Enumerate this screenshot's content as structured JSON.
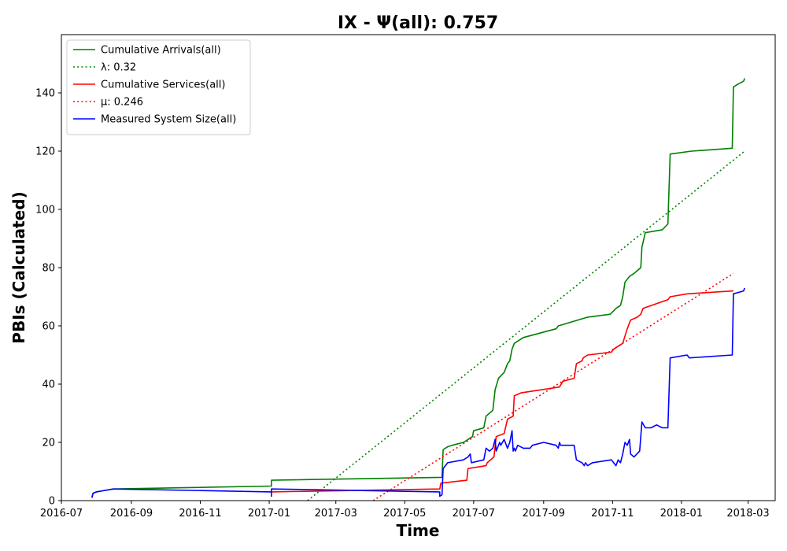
{
  "chart_data": {
    "type": "line",
    "title": "IX -  Ψ(all): 0.757",
    "xlabel": "Time",
    "ylabel": "PBIs (Calculated)",
    "xlim": [
      "2016-07-01",
      "2018-03-25"
    ],
    "ylim": [
      0,
      160
    ],
    "x_ticks": [
      "2016-07",
      "2016-09",
      "2016-11",
      "2017-01",
      "2017-03",
      "2017-05",
      "2017-07",
      "2017-09",
      "2017-11",
      "2018-01",
      "2018-03"
    ],
    "y_ticks": [
      0,
      20,
      40,
      60,
      80,
      100,
      120,
      140
    ],
    "grid": false,
    "legend_position": "top-left",
    "series": [
      {
        "name": "Cumulative Arrivals(all)",
        "color": "#008000",
        "style": "solid",
        "points": [
          [
            "2016-07-28",
            1
          ],
          [
            "2016-07-29",
            2.5
          ],
          [
            "2016-08-01",
            3
          ],
          [
            "2016-08-16",
            4
          ],
          [
            "2017-01-03",
            5
          ],
          [
            "2017-01-03",
            7
          ],
          [
            "2017-06-03",
            8
          ],
          [
            "2017-06-04",
            17.5
          ],
          [
            "2017-06-08",
            18.5
          ],
          [
            "2017-06-12",
            19
          ],
          [
            "2017-06-22",
            20
          ],
          [
            "2017-06-26",
            21
          ],
          [
            "2017-06-30",
            22
          ],
          [
            "2017-07-01",
            24
          ],
          [
            "2017-07-10",
            25
          ],
          [
            "2017-07-12",
            29
          ],
          [
            "2017-07-15",
            30
          ],
          [
            "2017-07-18",
            31
          ],
          [
            "2017-07-20",
            38
          ],
          [
            "2017-07-23",
            42
          ],
          [
            "2017-07-28",
            44
          ],
          [
            "2017-07-31",
            47
          ],
          [
            "2017-08-02",
            48
          ],
          [
            "2017-08-04",
            52
          ],
          [
            "2017-08-06",
            54
          ],
          [
            "2017-08-14",
            56
          ],
          [
            "2017-09-12",
            59
          ],
          [
            "2017-09-14",
            60
          ],
          [
            "2017-10-10",
            63
          ],
          [
            "2017-10-30",
            64
          ],
          [
            "2017-11-04",
            66
          ],
          [
            "2017-11-08",
            67
          ],
          [
            "2017-11-10",
            70
          ],
          [
            "2017-11-12",
            75
          ],
          [
            "2017-11-16",
            77
          ],
          [
            "2017-11-20",
            78
          ],
          [
            "2017-11-26",
            80
          ],
          [
            "2017-11-27",
            87
          ],
          [
            "2017-11-30",
            92
          ],
          [
            "2017-12-15",
            93
          ],
          [
            "2017-12-20",
            95
          ],
          [
            "2017-12-22",
            119
          ],
          [
            "2018-01-10",
            120
          ],
          [
            "2018-02-15",
            121
          ],
          [
            "2018-02-16",
            142
          ],
          [
            "2018-02-20",
            143
          ],
          [
            "2018-02-25",
            144
          ],
          [
            "2018-02-26",
            145
          ]
        ]
      },
      {
        "name": "λ: 0.32",
        "color": "#008000",
        "style": "dotted",
        "points": [
          [
            "2017-02-04",
            0
          ],
          [
            "2018-02-26",
            120
          ]
        ]
      },
      {
        "name": "Cumulative Services(all)",
        "color": "#ff0000",
        "style": "solid",
        "points": [
          [
            "2017-01-03",
            3
          ],
          [
            "2017-06-01",
            4
          ],
          [
            "2017-06-02",
            6
          ],
          [
            "2017-06-25",
            7
          ],
          [
            "2017-06-26",
            11
          ],
          [
            "2017-07-12",
            12
          ],
          [
            "2017-07-13",
            13
          ],
          [
            "2017-07-19",
            15
          ],
          [
            "2017-07-21",
            22
          ],
          [
            "2017-07-28",
            23
          ],
          [
            "2017-07-31",
            28
          ],
          [
            "2017-08-05",
            29
          ],
          [
            "2017-08-06",
            36
          ],
          [
            "2017-08-12",
            37
          ],
          [
            "2017-09-15",
            39
          ],
          [
            "2017-09-18",
            41
          ],
          [
            "2017-09-28",
            42
          ],
          [
            "2017-09-30",
            47
          ],
          [
            "2017-10-05",
            48
          ],
          [
            "2017-10-06",
            49
          ],
          [
            "2017-10-10",
            50
          ],
          [
            "2017-10-31",
            51
          ],
          [
            "2017-11-02",
            52
          ],
          [
            "2017-11-10",
            54
          ],
          [
            "2017-11-14",
            59
          ],
          [
            "2017-11-17",
            62
          ],
          [
            "2017-11-23",
            63
          ],
          [
            "2017-11-26",
            64
          ],
          [
            "2017-11-28",
            66
          ],
          [
            "2017-12-20",
            69
          ],
          [
            "2017-12-22",
            70
          ],
          [
            "2018-01-06",
            71
          ],
          [
            "2018-02-16",
            72
          ]
        ]
      },
      {
        "name": "μ: 0.246",
        "color": "#ff0000",
        "style": "dotted",
        "points": [
          [
            "2017-04-03",
            0
          ],
          [
            "2018-02-16",
            78
          ]
        ]
      },
      {
        "name": "Measured System Size(all)",
        "color": "#0000ff",
        "style": "solid",
        "points": [
          [
            "2016-07-28",
            1
          ],
          [
            "2016-07-29",
            2.5
          ],
          [
            "2016-08-01",
            3
          ],
          [
            "2016-08-16",
            4
          ],
          [
            "2017-01-03",
            3
          ],
          [
            "2017-01-03",
            1.5
          ],
          [
            "2017-01-03",
            4
          ],
          [
            "2017-06-01",
            3
          ],
          [
            "2017-06-01",
            1.5
          ],
          [
            "2017-06-03",
            2
          ],
          [
            "2017-06-04",
            11
          ],
          [
            "2017-06-08",
            13
          ],
          [
            "2017-06-22",
            14
          ],
          [
            "2017-06-26",
            15
          ],
          [
            "2017-06-28",
            16
          ],
          [
            "2017-06-29",
            13
          ],
          [
            "2017-07-10",
            14
          ],
          [
            "2017-07-12",
            18
          ],
          [
            "2017-07-15",
            17
          ],
          [
            "2017-07-18",
            18
          ],
          [
            "2017-07-20",
            21
          ],
          [
            "2017-07-21",
            17
          ],
          [
            "2017-07-24",
            20
          ],
          [
            "2017-07-25",
            19
          ],
          [
            "2017-07-28",
            21
          ],
          [
            "2017-07-31",
            18
          ],
          [
            "2017-08-02",
            20
          ],
          [
            "2017-08-04",
            24
          ],
          [
            "2017-08-05",
            17
          ],
          [
            "2017-08-06",
            18
          ],
          [
            "2017-08-07",
            17
          ],
          [
            "2017-08-09",
            19
          ],
          [
            "2017-08-14",
            18
          ],
          [
            "2017-08-20",
            18
          ],
          [
            "2017-08-22",
            19
          ],
          [
            "2017-09-01",
            20
          ],
          [
            "2017-09-12",
            19
          ],
          [
            "2017-09-14",
            18
          ],
          [
            "2017-09-15",
            20
          ],
          [
            "2017-09-16",
            19
          ],
          [
            "2017-09-28",
            19
          ],
          [
            "2017-09-30",
            14
          ],
          [
            "2017-10-05",
            13
          ],
          [
            "2017-10-07",
            12
          ],
          [
            "2017-10-08",
            13
          ],
          [
            "2017-10-10",
            12
          ],
          [
            "2017-10-14",
            13
          ],
          [
            "2017-10-31",
            14
          ],
          [
            "2017-11-02",
            13
          ],
          [
            "2017-11-04",
            12
          ],
          [
            "2017-11-06",
            14
          ],
          [
            "2017-11-08",
            13
          ],
          [
            "2017-11-10",
            16
          ],
          [
            "2017-11-12",
            20
          ],
          [
            "2017-11-14",
            19
          ],
          [
            "2017-11-16",
            21
          ],
          [
            "2017-11-17",
            16
          ],
          [
            "2017-11-20",
            15
          ],
          [
            "2017-11-25",
            17
          ],
          [
            "2017-11-27",
            27
          ],
          [
            "2017-11-30",
            25
          ],
          [
            "2017-12-05",
            25
          ],
          [
            "2017-12-10",
            26
          ],
          [
            "2017-12-15",
            25
          ],
          [
            "2017-12-20",
            25
          ],
          [
            "2017-12-22",
            49
          ],
          [
            "2018-01-06",
            50
          ],
          [
            "2018-01-08",
            49
          ],
          [
            "2018-02-15",
            50
          ],
          [
            "2018-02-16",
            71
          ],
          [
            "2018-02-25",
            72
          ],
          [
            "2018-02-26",
            73
          ]
        ]
      }
    ]
  }
}
